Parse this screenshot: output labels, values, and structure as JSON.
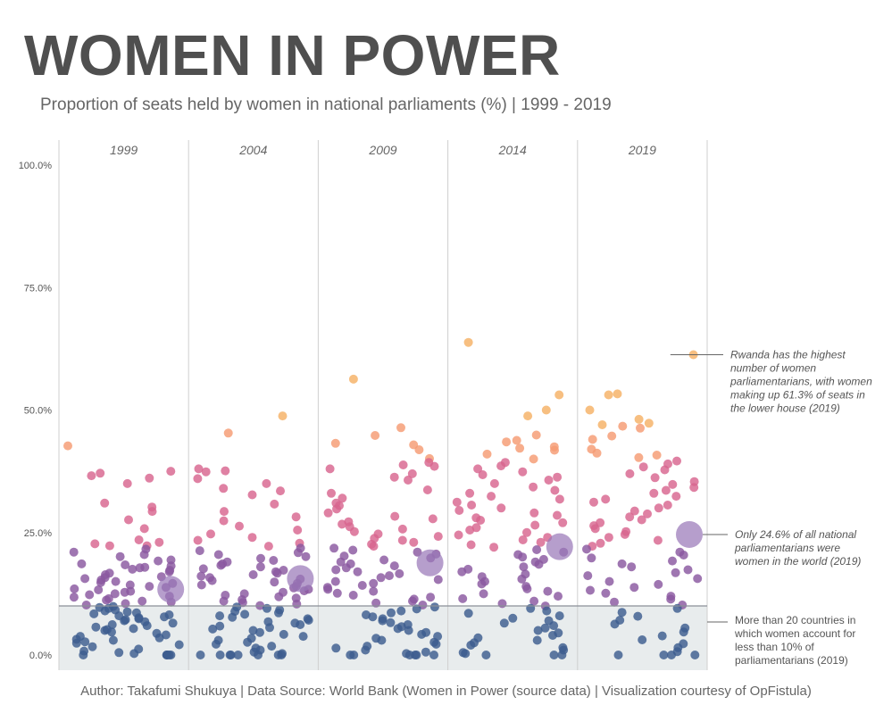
{
  "title": "WOMEN IN POWER",
  "subtitle": "Proportion of seats held by women in national parliaments (%) | 1999 - 2019",
  "footer": "Author: Takafumi Shukuya | Data Source: World Bank (Women in Power (source data) | Visualization courtesy of OpFistula)",
  "colors": {
    "low": "#3d5d8f",
    "mid": "#8a58a0",
    "upper": "#d8658f",
    "high": "#f59b73",
    "top": "#f5b165",
    "band": "#e8eced",
    "mean": "#9a78b8"
  },
  "annotations": [
    {
      "key": "rwanda",
      "text": [
        "Rwanda has the highest",
        "number of women",
        "parliamentarians, with women",
        "making up 61.3% of seats in",
        "the lower house (2019)"
      ],
      "italic": true
    },
    {
      "key": "world",
      "text": [
        "Only 24.6% of all national",
        "parliamentarians were",
        "women in the world (2019)"
      ],
      "italic": true
    },
    {
      "key": "band",
      "text": [
        "More than 20 countries in",
        "which women account for",
        "less than 10% of",
        "parliamentarians (2019)"
      ],
      "italic": false
    }
  ],
  "chart_data": {
    "type": "scatter",
    "title": "WOMEN IN POWER",
    "subtitle": "Proportion of seats held by women in national parliaments (%) | 1999 - 2019",
    "ylabel": "",
    "ylim": [
      0,
      100
    ],
    "yticks": [
      "0.0%",
      "25.0%",
      "50.0%",
      "75.0%",
      "100.0%"
    ],
    "highlight_band": [
      0,
      10
    ],
    "series": [
      {
        "name": "1999",
        "world_average": 13.4,
        "values": [
          42.7,
          37.5,
          37.1,
          36.6,
          36.1,
          35.0,
          31.0,
          30.2,
          29.3,
          27.6,
          25.8,
          23.5,
          23.0,
          22.7,
          22.3,
          22.3,
          21.6,
          21.0,
          20.5,
          20.1,
          19.4,
          19.2,
          18.6,
          18.4,
          18.2,
          17.9,
          17.8,
          17.5,
          17.3,
          17.0,
          16.7,
          16.4,
          16.0,
          15.8,
          15.6,
          15.3,
          15.0,
          14.8,
          14.6,
          14.3,
          14.0,
          13.8,
          13.5,
          13.3,
          13.0,
          12.8,
          12.5,
          12.3,
          12.0,
          11.8,
          11.5,
          11.2,
          11.0,
          10.8,
          10.5,
          10.2,
          9.9,
          9.7,
          9.5,
          9.2,
          9.0,
          8.8,
          8.6,
          8.4,
          8.2,
          8.0,
          7.8,
          7.6,
          7.4,
          7.2,
          7.0,
          6.8,
          6.5,
          6.2,
          6.0,
          5.7,
          5.4,
          5.2,
          5.0,
          4.7,
          4.4,
          4.1,
          3.8,
          3.5,
          3.2,
          3.0,
          2.7,
          2.4,
          2.1,
          1.7,
          1.2,
          0.8,
          0.5,
          0.3,
          0.0,
          0.0,
          0.0,
          0.0,
          0.0,
          0.0
        ]
      },
      {
        "name": "2004",
        "world_average": 15.6,
        "values": [
          48.8,
          45.3,
          38.0,
          37.6,
          37.4,
          36.0,
          35.0,
          34.0,
          33.5,
          32.7,
          30.8,
          29.3,
          28.2,
          27.4,
          26.3,
          25.5,
          24.7,
          24.0,
          23.4,
          22.8,
          22.2,
          21.8,
          21.3,
          20.9,
          20.5,
          20.1,
          19.7,
          19.3,
          19.0,
          18.6,
          18.3,
          18.0,
          17.6,
          17.3,
          17.0,
          16.7,
          16.4,
          16.1,
          15.8,
          15.5,
          15.2,
          14.9,
          14.6,
          14.3,
          14.0,
          13.7,
          13.4,
          13.1,
          12.8,
          12.5,
          12.2,
          11.9,
          11.6,
          11.3,
          11.0,
          10.7,
          10.4,
          10.1,
          9.8,
          9.5,
          9.2,
          8.9,
          8.6,
          8.3,
          8.0,
          7.7,
          7.4,
          7.1,
          6.8,
          6.5,
          6.2,
          5.9,
          5.6,
          5.3,
          5.0,
          4.6,
          4.2,
          3.8,
          3.4,
          3.0,
          2.6,
          2.2,
          1.8,
          1.4,
          1.0,
          0.6,
          0.3,
          0.0,
          0.0,
          0.0,
          0.0,
          0.0,
          0.0,
          0.0,
          0.0
        ]
      },
      {
        "name": "2009",
        "world_average": 18.8,
        "values": [
          56.3,
          46.4,
          44.8,
          43.2,
          42.9,
          41.9,
          40.1,
          39.3,
          38.8,
          38.5,
          38.0,
          37.0,
          36.3,
          35.7,
          33.7,
          33.0,
          32.0,
          31.0,
          30.5,
          29.8,
          29.0,
          28.3,
          27.8,
          27.2,
          26.7,
          26.2,
          25.7,
          25.2,
          24.7,
          24.2,
          23.8,
          23.4,
          23.0,
          22.6,
          22.2,
          21.8,
          21.4,
          21.0,
          20.6,
          20.2,
          19.8,
          19.4,
          19.0,
          18.6,
          18.2,
          17.8,
          17.4,
          17.0,
          16.6,
          16.2,
          15.8,
          15.4,
          15.0,
          14.6,
          14.2,
          13.8,
          13.4,
          13.0,
          12.6,
          12.2,
          11.8,
          11.4,
          11.0,
          10.6,
          10.2,
          9.8,
          9.4,
          9.0,
          8.6,
          8.2,
          7.8,
          7.4,
          7.0,
          6.6,
          6.2,
          5.8,
          5.4,
          5.0,
          4.6,
          4.2,
          3.8,
          3.4,
          3.0,
          2.6,
          2.2,
          1.8,
          1.4,
          1.0,
          0.6,
          0.3,
          0.0,
          0.0,
          0.0,
          0.0,
          0.0,
          0.0
        ]
      },
      {
        "name": "2014",
        "world_average": 22.1,
        "values": [
          63.8,
          53.1,
          50.0,
          48.8,
          44.9,
          43.8,
          43.5,
          42.5,
          42.2,
          41.8,
          41.0,
          40.0,
          39.3,
          38.6,
          38.0,
          37.4,
          36.8,
          36.3,
          35.7,
          35.0,
          34.3,
          33.6,
          33.0,
          32.4,
          31.8,
          31.2,
          30.6,
          30.0,
          29.5,
          29.0,
          28.5,
          28.0,
          27.5,
          27.0,
          26.5,
          26.0,
          25.5,
          25.0,
          24.5,
          24.0,
          23.5,
          23.0,
          22.5,
          22.0,
          21.5,
          21.0,
          20.5,
          20.0,
          19.5,
          19.0,
          18.5,
          18.0,
          17.5,
          17.0,
          16.5,
          16.0,
          15.5,
          15.0,
          14.5,
          14.0,
          13.5,
          13.0,
          12.5,
          12.0,
          11.5,
          11.0,
          10.5,
          10.0,
          9.5,
          9.0,
          8.5,
          8.0,
          7.5,
          7.0,
          6.5,
          6.0,
          5.5,
          5.0,
          4.5,
          4.0,
          3.5,
          3.0,
          2.5,
          2.0,
          1.5,
          1.0,
          0.5,
          0.3,
          0.0,
          0.0,
          0.0
        ]
      },
      {
        "name": "2019",
        "world_average": 24.6,
        "values": [
          61.3,
          53.3,
          53.1,
          50.0,
          48.1,
          47.3,
          47.0,
          46.7,
          46.3,
          44.7,
          44.0,
          42.0,
          41.2,
          40.8,
          40.3,
          39.6,
          39.0,
          38.4,
          37.8,
          37.0,
          36.2,
          35.4,
          34.8,
          34.2,
          33.6,
          33.0,
          32.4,
          31.8,
          31.2,
          30.6,
          30.0,
          29.4,
          28.8,
          28.2,
          27.6,
          27.0,
          26.4,
          25.8,
          25.2,
          24.6,
          24.0,
          23.4,
          22.8,
          22.2,
          21.6,
          21.0,
          20.4,
          19.8,
          19.2,
          18.6,
          18.0,
          17.4,
          16.8,
          16.2,
          15.6,
          15.0,
          14.4,
          13.8,
          13.2,
          12.6,
          12.0,
          11.4,
          10.8,
          10.2,
          9.5,
          8.7,
          7.9,
          7.1,
          6.3,
          5.5,
          4.7,
          3.9,
          3.1,
          2.3,
          1.5,
          0.7,
          0.0,
          0.0,
          0.0,
          0.0
        ]
      }
    ]
  }
}
